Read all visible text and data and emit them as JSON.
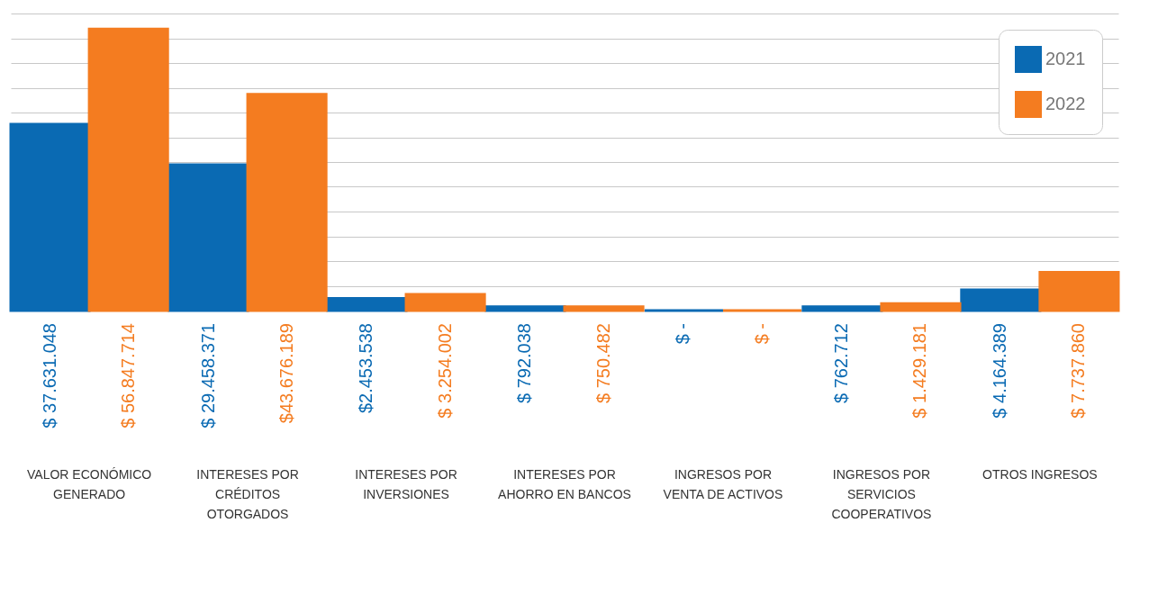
{
  "chart_data": {
    "type": "bar",
    "categories": [
      "VALOR ECONÓMICO GENERADO",
      "INTERESES POR CRÉDITOS OTORGADOS",
      "INTERESES POR INVERSIONES",
      "INTERESES POR AHORRO EN BANCOS",
      "INGRESOS POR VENTA DE ACTIVOS",
      "INGRESOS POR SERVICIOS COOPERATIVOS",
      "OTROS INGRESOS"
    ],
    "series": [
      {
        "name": "2021",
        "color": "#0a6ab3",
        "values": [
          37631048,
          29458371,
          2453538,
          792038,
          0,
          762712,
          4164389
        ],
        "value_labels": [
          "$ 37.631.048",
          "$ 29.458.371",
          "$2.453.538",
          "$ 792.038",
          "$ -",
          "$ 762.712",
          "$ 4.164.389"
        ]
      },
      {
        "name": "2022",
        "color": "#f47c20",
        "values": [
          56847714,
          43676189,
          3254002,
          750482,
          0,
          1429181,
          7737860
        ],
        "value_labels": [
          "$ 56.847.714",
          "$43.676.189",
          "$ 3.254.002",
          "$ 750.482",
          "$ -",
          "$ 1.429.181",
          "$ 7.737.860"
        ]
      }
    ],
    "grid": "y",
    "tick_labels": "x",
    "legend": "top right"
  }
}
